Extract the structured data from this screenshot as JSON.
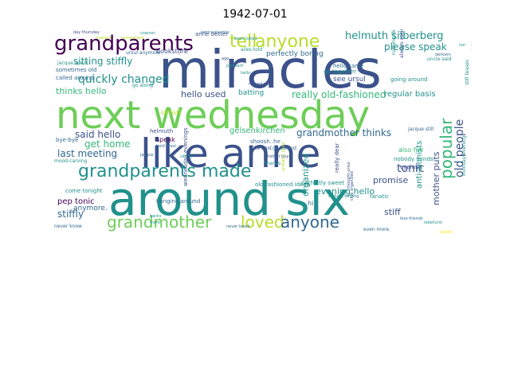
{
  "title": "1942-07-01",
  "colors": {
    "dark_purple": "#440154",
    "indigo": "#3b528b",
    "blue": "#31688e",
    "teal": "#21918c",
    "sea_green": "#35b779",
    "green": "#6ece58",
    "lime": "#b5de2b",
    "yellow": "#fde725"
  },
  "words": [
    {
      "text": "miracles",
      "color": "indigo",
      "weight": 1.0,
      "orient": "h"
    },
    {
      "text": "next wednesday",
      "color": "green",
      "weight": 0.96,
      "orient": "h"
    },
    {
      "text": "like anne",
      "color": "indigo",
      "weight": 0.9,
      "orient": "h"
    },
    {
      "text": "around six",
      "color": "teal",
      "weight": 0.88,
      "orient": "h"
    },
    {
      "text": "grandparents",
      "color": "dark_purple",
      "weight": 0.55,
      "orient": "h"
    },
    {
      "text": "grandparents made",
      "color": "teal",
      "weight": 0.45,
      "orient": "h"
    },
    {
      "text": "tell",
      "color": "lime",
      "weight": 0.35,
      "orient": "h"
    },
    {
      "text": "anyone",
      "color": "lime",
      "weight": 0.35,
      "orient": "h"
    },
    {
      "text": "grandmother",
      "color": "green",
      "weight": 0.33,
      "orient": "h"
    },
    {
      "text": "loved",
      "color": "lime",
      "weight": 0.33,
      "orient": "h"
    },
    {
      "text": "anyone",
      "color": "blue",
      "weight": 0.33,
      "orient": "h"
    },
    {
      "text": "popular",
      "color": "sea_green",
      "weight": 0.3,
      "orient": "v"
    },
    {
      "text": "helmuth silberberg",
      "color": "teal",
      "weight": 0.22,
      "orient": "h"
    },
    {
      "text": "quickly changed",
      "color": "teal",
      "weight": 0.22,
      "orient": "h"
    },
    {
      "text": "sitting stiffly",
      "color": "teal",
      "weight": 0.2,
      "orient": "h"
    },
    {
      "text": "really old-fashioned",
      "color": "sea_green",
      "weight": 0.2,
      "orient": "h"
    },
    {
      "text": "grandmother thinks",
      "color": "blue",
      "weight": 0.2,
      "orient": "h"
    },
    {
      "text": "tonic",
      "color": "indigo",
      "weight": 0.22,
      "orient": "h"
    },
    {
      "text": "old people",
      "color": "indigo",
      "weight": 0.22,
      "orient": "v"
    },
    {
      "text": "please speak",
      "color": "teal",
      "weight": 0.17,
      "orient": "h"
    },
    {
      "text": "evening hello",
      "color": "teal",
      "weight": 0.17,
      "orient": "h"
    },
    {
      "text": "promise",
      "color": "indigo",
      "weight": 0.17,
      "orient": "h"
    },
    {
      "text": "organized",
      "color": "teal",
      "weight": 0.17,
      "orient": "v"
    },
    {
      "text": "mother puts",
      "color": "indigo",
      "weight": 0.17,
      "orient": "v"
    },
    {
      "text": "stiff",
      "color": "indigo",
      "weight": 0.17,
      "orient": "h"
    },
    {
      "text": "said hello",
      "color": "indigo",
      "weight": 0.15,
      "orient": "h"
    },
    {
      "text": "get home",
      "color": "sea_green",
      "weight": 0.15,
      "orient": "h"
    },
    {
      "text": "last meeting",
      "color": "blue",
      "weight": 0.15,
      "orient": "h"
    },
    {
      "text": "stiffly",
      "color": "blue",
      "weight": 0.15,
      "orient": "h"
    },
    {
      "text": "pep tonic",
      "color": "dark_purple",
      "weight": 0.13,
      "orient": "h"
    },
    {
      "text": "hello used",
      "color": "indigo",
      "weight": 0.13,
      "orient": "h"
    },
    {
      "text": "thinks hello",
      "color": "sea_green",
      "weight": 0.13,
      "orient": "h"
    },
    {
      "text": "regular basis",
      "color": "teal",
      "weight": 0.13,
      "orient": "h"
    },
    {
      "text": "gelsenkirchen",
      "color": "sea_green",
      "weight": 0.13,
      "orient": "h"
    },
    {
      "text": "see ursul",
      "color": "indigo",
      "weight": 0.12,
      "orient": "h"
    },
    {
      "text": "perfectly boring",
      "color": "blue",
      "weight": 0.11,
      "orient": "h"
    },
    {
      "text": "bookstore",
      "color": "indigo",
      "weight": 0.09,
      "orient": "h"
    },
    {
      "text": "batting",
      "color": "teal",
      "weight": 0.1,
      "orient": "h"
    },
    {
      "text": "ursul",
      "color": "lime",
      "weight": 0.11,
      "orient": "h"
    },
    {
      "text": "speak",
      "color": "dark_purple",
      "weight": 0.09,
      "orient": "h"
    },
    {
      "text": "anymore.",
      "color": "blue",
      "weight": 0.1,
      "orient": "h"
    },
    {
      "text": "anti-zionists",
      "color": "teal",
      "weight": 0.1,
      "orient": "v"
    },
    {
      "text": "also full",
      "color": "sea_green",
      "weight": 0.09,
      "orient": "h"
    },
    {
      "text": "nobody minds",
      "color": "teal",
      "weight": 0.08,
      "orient": "h"
    },
    {
      "text": "eyelash",
      "color": "indigo",
      "weight": 0.08,
      "orient": "h"
    },
    {
      "text": "fanatic",
      "color": "teal",
      "weight": 0.08,
      "orient": "h"
    },
    {
      "text": "going around",
      "color": "teal",
      "weight": 0.08,
      "orient": "h"
    },
    {
      "text": "hello came",
      "color": "blue",
      "weight": 0.08,
      "orient": "h"
    },
    {
      "text": "go together",
      "color": "teal",
      "weight": 0.08,
      "orient": "h"
    },
    {
      "text": "sometimes old",
      "color": "blue",
      "weight": 0.08,
      "orient": "h"
    },
    {
      "text": "called around",
      "color": "blue",
      "weight": 0.08,
      "orient": "h"
    },
    {
      "text": "bye-bye",
      "color": "blue",
      "weight": 0.08,
      "orient": "h"
    },
    {
      "text": "mood-carving",
      "color": "teal",
      "weight": 0.07,
      "orient": "h"
    },
    {
      "text": "come tonight",
      "color": "teal",
      "weight": 0.07,
      "orient": "h"
    },
    {
      "text": "helmuth",
      "color": "indigo",
      "weight": 0.07,
      "orient": "h"
    },
    {
      "text": "old-fashioned ideas",
      "color": "teal",
      "weight": 0.07,
      "orient": "h"
    },
    {
      "text": "perfectly sweet",
      "color": "teal",
      "weight": 0.07,
      "orient": "h"
    },
    {
      "text": "shoosh..he",
      "color": "blue",
      "weight": 0.07,
      "orient": "h"
    },
    {
      "text": "like best",
      "color": "indigo",
      "weight": 0.06,
      "orient": "h"
    },
    {
      "text": "thanks",
      "color": "teal",
      "weight": 0.06,
      "orient": "h"
    },
    {
      "text": "hanging around",
      "color": "blue",
      "weight": 0.07,
      "orient": "h"
    },
    {
      "text": "wednesday evenings",
      "color": "indigo",
      "weight": 0.06,
      "orient": "v"
    },
    {
      "text": "anne better",
      "color": "indigo",
      "weight": 0.06,
      "orient": "h"
    },
    {
      "text": "really dear",
      "color": "indigo",
      "weight": 0.06,
      "orient": "v"
    },
    {
      "text": "still teases",
      "color": "teal",
      "weight": 0.06,
      "orient": "v"
    },
    {
      "text": "ailes told",
      "color": "teal",
      "weight": 0.05,
      "orient": "h"
    },
    {
      "text": "go along",
      "color": "teal",
      "weight": 0.05,
      "orient": "h"
    },
    {
      "text": "jacque spent",
      "color": "teal",
      "weight": 0.05,
      "orient": "h"
    },
    {
      "text": "ursul anymore",
      "color": "blue",
      "weight": 0.05,
      "orient": "h"
    },
    {
      "text": "always asking",
      "color": "indigo",
      "weight": 0.05,
      "orient": "v"
    },
    {
      "text": "nothing like",
      "color": "teal",
      "weight": 0.05,
      "orient": "v"
    },
    {
      "text": "uncle said",
      "color": "teal",
      "weight": 0.05,
      "orient": "h"
    },
    {
      "text": "jacque still",
      "color": "blue",
      "weight": 0.05,
      "orient": "h"
    },
    {
      "text": "monday evening",
      "color": "teal",
      "weight": 0.05,
      "orient": "v"
    },
    {
      "text": "never know",
      "color": "blue",
      "weight": 0.05,
      "orient": "h"
    },
    {
      "text": "even more.",
      "color": "blue",
      "weight": 0.05,
      "orient": "h"
    },
    {
      "text": "go behind",
      "color": "blue",
      "weight": 0.05,
      "orient": "h"
    },
    {
      "text": "another boy",
      "color": "indigo",
      "weight": 0.04,
      "orient": "h"
    },
    {
      "text": "without batting",
      "color": "teal",
      "weight": 0.04,
      "orient": "h"
    },
    {
      "text": "thought ursul",
      "color": "indigo",
      "weight": 0.04,
      "orient": "v"
    },
    {
      "text": "probably know",
      "color": "lime",
      "weight": 0.04,
      "orient": "v"
    },
    {
      "text": "never loved",
      "color": "blue",
      "weight": 0.04,
      "orient": "h"
    },
    {
      "text": "club organized",
      "color": "indigo",
      "weight": 0.04,
      "orient": "v"
    },
    {
      "text": "hi",
      "color": "blue",
      "weight": 0.05,
      "orient": "h"
    },
    {
      "text": "ago",
      "color": "indigo",
      "weight": 0.04,
      "orient": "h"
    },
    {
      "text": "lakehurst",
      "color": "teal",
      "weight": 0.04,
      "orient": "h"
    },
    {
      "text": "moved stiff",
      "color": "indigo",
      "weight": 0.04,
      "orient": "h"
    },
    {
      "text": "bold ursul",
      "color": "blue",
      "weight": 0.04,
      "orient": "h"
    },
    {
      "text": "uncle",
      "color": "teal",
      "weight": 0.04,
      "orient": "h"
    },
    {
      "text": "pleasant",
      "color": "teal",
      "weight": 0.04,
      "orient": "h"
    },
    {
      "text": "day thursday",
      "color": "indigo",
      "weight": 0.03,
      "orient": "h"
    },
    {
      "text": "coarser",
      "color": "teal",
      "weight": 0.03,
      "orient": "h"
    },
    {
      "text": "went saturday",
      "color": "blue",
      "weight": 0.03,
      "orient": "h"
    },
    {
      "text": "delivers",
      "color": "blue",
      "weight": 0.03,
      "orient": "h"
    },
    {
      "text": "been hated",
      "color": "teal",
      "weight": 0.03,
      "orient": "h"
    },
    {
      "text": "nor",
      "color": "teal",
      "weight": 0.03,
      "orient": "h"
    },
    {
      "text": "hello",
      "color": "teal",
      "weight": 0.03,
      "orient": "h"
    },
    {
      "text": "matters",
      "color": "lime",
      "weight": 0.03,
      "orient": "h"
    },
    {
      "text": "somewhere",
      "color": "lime",
      "weight": 0.03,
      "orient": "h"
    },
    {
      "text": "backs",
      "color": "teal",
      "weight": 0.03,
      "orient": "h"
    },
    {
      "text": "more.",
      "color": "teal",
      "weight": 0.03,
      "orient": "h"
    },
    {
      "text": "jacque",
      "color": "blue",
      "weight": 0.03,
      "orient": "h"
    },
    {
      "text": "go right",
      "color": "blue",
      "weight": 0.03,
      "orient": "v"
    },
    {
      "text": "less friends",
      "color": "blue",
      "weight": 0.03,
      "orient": "h"
    },
    {
      "text": "daddy",
      "color": "yellow",
      "weight": 0.03,
      "orient": "h"
    }
  ]
}
